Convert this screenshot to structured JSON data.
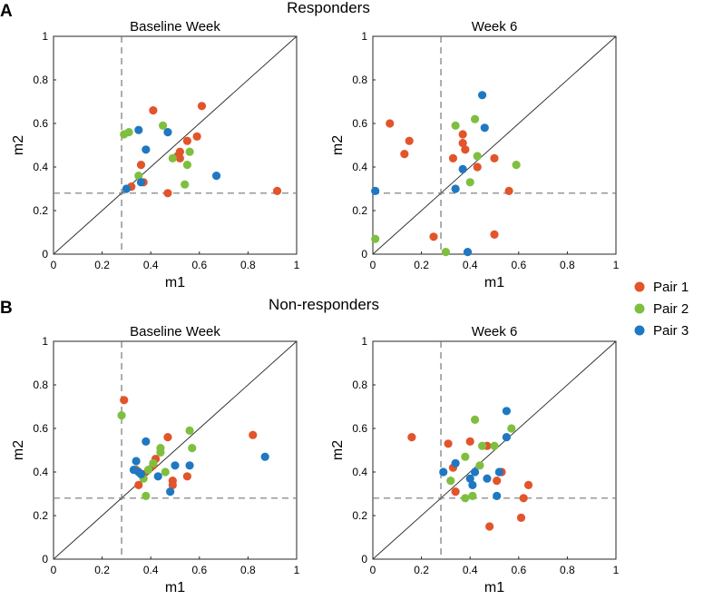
{
  "figure": {
    "panel_a_label": "A",
    "panel_b_label": "B",
    "section_a_title": "Responders",
    "section_b_title": "Non-responders"
  },
  "legend": [
    {
      "label": "Pair 1",
      "color": "#E2542A"
    },
    {
      "label": "Pair 2",
      "color": "#7FBF3F"
    },
    {
      "label": "Pair 3",
      "color": "#1F78C1"
    }
  ],
  "chart_data": [
    {
      "id": "responders-baseline",
      "type": "scatter",
      "title": "Baseline Week",
      "xlabel": "m1",
      "ylabel": "m2",
      "xlim": [
        0,
        1
      ],
      "ylim": [
        0,
        1
      ],
      "ticks": [
        0,
        0.2,
        0.4,
        0.6,
        0.8,
        1
      ],
      "tick_labels": [
        "0",
        "0.2",
        "0.4",
        "0.6",
        "0.8",
        "1"
      ],
      "threshold": 0.28,
      "series": [
        {
          "name": "Pair 1",
          "color": "#E2542A",
          "points": [
            [
              0.41,
              0.66
            ],
            [
              0.61,
              0.68
            ],
            [
              0.59,
              0.54
            ],
            [
              0.55,
              0.52
            ],
            [
              0.52,
              0.47
            ],
            [
              0.52,
              0.44
            ],
            [
              0.51,
              0.45
            ],
            [
              0.36,
              0.41
            ],
            [
              0.37,
              0.33
            ],
            [
              0.47,
              0.28
            ],
            [
              0.92,
              0.29
            ],
            [
              0.32,
              0.31
            ]
          ]
        },
        {
          "name": "Pair 2",
          "color": "#7FBF3F",
          "points": [
            [
              0.29,
              0.55
            ],
            [
              0.31,
              0.56
            ],
            [
              0.45,
              0.59
            ],
            [
              0.49,
              0.44
            ],
            [
              0.56,
              0.47
            ],
            [
              0.55,
              0.41
            ],
            [
              0.54,
              0.32
            ],
            [
              0.35,
              0.36
            ]
          ]
        },
        {
          "name": "Pair 3",
          "color": "#1F78C1",
          "points": [
            [
              0.35,
              0.57
            ],
            [
              0.47,
              0.56
            ],
            [
              0.38,
              0.48
            ],
            [
              0.67,
              0.36
            ],
            [
              0.36,
              0.33
            ],
            [
              0.3,
              0.3
            ]
          ]
        }
      ]
    },
    {
      "id": "responders-week6",
      "type": "scatter",
      "title": "Week 6",
      "xlabel": "m1",
      "ylabel": "m2",
      "xlim": [
        0,
        1
      ],
      "ylim": [
        0,
        1
      ],
      "ticks": [
        0,
        0.2,
        0.4,
        0.6,
        0.8,
        1
      ],
      "tick_labels": [
        "0",
        "0.2",
        "0.4",
        "0.6",
        "0.8",
        "1"
      ],
      "threshold": 0.28,
      "series": [
        {
          "name": "Pair 1",
          "color": "#E2542A",
          "points": [
            [
              0.07,
              0.6
            ],
            [
              0.15,
              0.52
            ],
            [
              0.13,
              0.46
            ],
            [
              0.37,
              0.55
            ],
            [
              0.37,
              0.51
            ],
            [
              0.38,
              0.48
            ],
            [
              0.33,
              0.44
            ],
            [
              0.5,
              0.44
            ],
            [
              0.43,
              0.4
            ],
            [
              0.56,
              0.29
            ],
            [
              0.25,
              0.08
            ],
            [
              0.5,
              0.09
            ]
          ]
        },
        {
          "name": "Pair 2",
          "color": "#7FBF3F",
          "points": [
            [
              0.34,
              0.59
            ],
            [
              0.42,
              0.62
            ],
            [
              0.43,
              0.45
            ],
            [
              0.4,
              0.33
            ],
            [
              0.59,
              0.41
            ],
            [
              0.01,
              0.07
            ],
            [
              0.3,
              0.01
            ]
          ]
        },
        {
          "name": "Pair 3",
          "color": "#1F78C1",
          "points": [
            [
              0.45,
              0.73
            ],
            [
              0.46,
              0.58
            ],
            [
              0.37,
              0.39
            ],
            [
              0.34,
              0.3
            ],
            [
              0.01,
              0.29
            ],
            [
              0.39,
              0.01
            ]
          ]
        }
      ]
    },
    {
      "id": "nonresponders-baseline",
      "type": "scatter",
      "title": "Baseline Week",
      "xlabel": "m1",
      "ylabel": "m2",
      "xlim": [
        0,
        1
      ],
      "ylim": [
        0,
        1
      ],
      "ticks": [
        0,
        0.2,
        0.4,
        0.6,
        0.8,
        1
      ],
      "tick_labels": [
        "0",
        "0.2",
        "0.4",
        "0.6",
        "0.8",
        "1"
      ],
      "threshold": 0.28,
      "series": [
        {
          "name": "Pair 1",
          "color": "#E2542A",
          "points": [
            [
              0.29,
              0.73
            ],
            [
              0.82,
              0.57
            ],
            [
              0.47,
              0.56
            ],
            [
              0.34,
              0.41
            ],
            [
              0.37,
              0.39
            ],
            [
              0.35,
              0.34
            ],
            [
              0.42,
              0.46
            ],
            [
              0.41,
              0.43
            ],
            [
              0.55,
              0.38
            ],
            [
              0.49,
              0.36
            ],
            [
              0.49,
              0.34
            ]
          ]
        },
        {
          "name": "Pair 2",
          "color": "#7FBF3F",
          "points": [
            [
              0.28,
              0.66
            ],
            [
              0.56,
              0.59
            ],
            [
              0.44,
              0.51
            ],
            [
              0.57,
              0.51
            ],
            [
              0.44,
              0.49
            ],
            [
              0.41,
              0.44
            ],
            [
              0.39,
              0.41
            ],
            [
              0.46,
              0.4
            ],
            [
              0.37,
              0.37
            ],
            [
              0.38,
              0.29
            ]
          ]
        },
        {
          "name": "Pair 3",
          "color": "#1F78C1",
          "points": [
            [
              0.38,
              0.54
            ],
            [
              0.87,
              0.47
            ],
            [
              0.34,
              0.45
            ],
            [
              0.33,
              0.41
            ],
            [
              0.35,
              0.4
            ],
            [
              0.36,
              0.39
            ],
            [
              0.43,
              0.38
            ],
            [
              0.5,
              0.43
            ],
            [
              0.56,
              0.43
            ],
            [
              0.48,
              0.31
            ]
          ]
        }
      ]
    },
    {
      "id": "nonresponders-week6",
      "type": "scatter",
      "title": "Week 6",
      "xlabel": "m1",
      "ylabel": "m2",
      "xlim": [
        0,
        1
      ],
      "ylim": [
        0,
        1
      ],
      "ticks": [
        0,
        0.2,
        0.4,
        0.6,
        0.8,
        1
      ],
      "tick_labels": [
        "0",
        "0.2",
        "0.4",
        "0.6",
        "0.8",
        "1"
      ],
      "threshold": 0.28,
      "series": [
        {
          "name": "Pair 1",
          "color": "#E2542A",
          "points": [
            [
              0.16,
              0.56
            ],
            [
              0.31,
              0.53
            ],
            [
              0.4,
              0.54
            ],
            [
              0.47,
              0.52
            ],
            [
              0.33,
              0.42
            ],
            [
              0.34,
              0.31
            ],
            [
              0.51,
              0.36
            ],
            [
              0.53,
              0.4
            ],
            [
              0.64,
              0.34
            ],
            [
              0.62,
              0.28
            ],
            [
              0.61,
              0.19
            ],
            [
              0.48,
              0.15
            ]
          ]
        },
        {
          "name": "Pair 2",
          "color": "#7FBF3F",
          "points": [
            [
              0.42,
              0.64
            ],
            [
              0.57,
              0.6
            ],
            [
              0.45,
              0.52
            ],
            [
              0.5,
              0.52
            ],
            [
              0.38,
              0.47
            ],
            [
              0.32,
              0.36
            ],
            [
              0.44,
              0.43
            ],
            [
              0.38,
              0.28
            ],
            [
              0.41,
              0.29
            ]
          ]
        },
        {
          "name": "Pair 3",
          "color": "#1F78C1",
          "points": [
            [
              0.55,
              0.68
            ],
            [
              0.55,
              0.56
            ],
            [
              0.34,
              0.44
            ],
            [
              0.29,
              0.4
            ],
            [
              0.42,
              0.4
            ],
            [
              0.4,
              0.37
            ],
            [
              0.47,
              0.37
            ],
            [
              0.41,
              0.34
            ],
            [
              0.52,
              0.4
            ],
            [
              0.51,
              0.29
            ]
          ]
        }
      ]
    }
  ]
}
